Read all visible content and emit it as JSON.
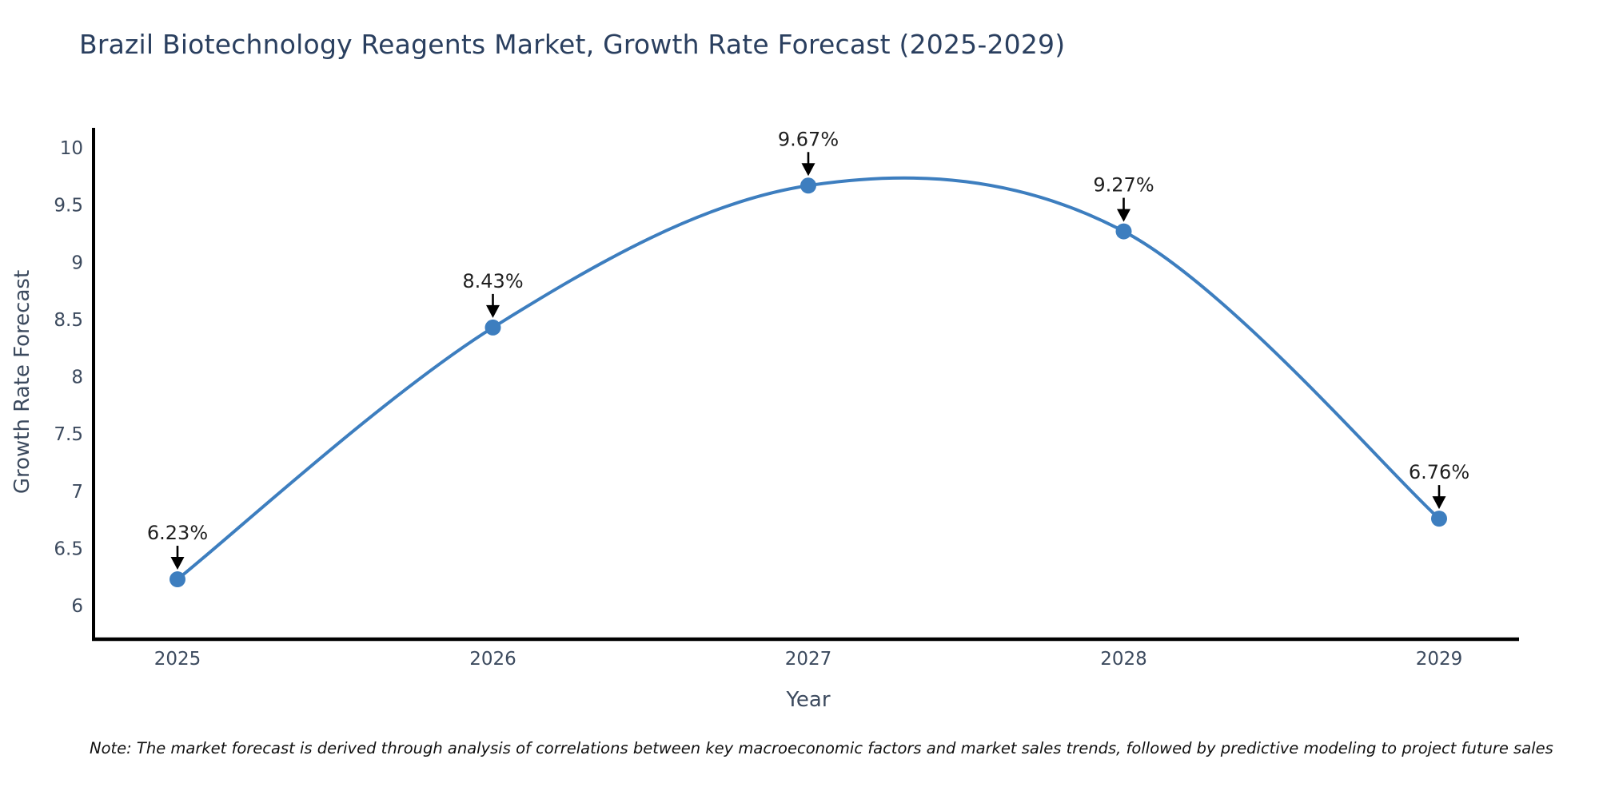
{
  "title": "Brazil Biotechnology Reagents Market, Growth Rate Forecast (2025-2029)",
  "note": "Note: The market forecast is derived through analysis of correlations between key macroeconomic factors and market sales trends, followed by predictive modeling to project future sales",
  "chart_data": {
    "type": "line",
    "title": "Brazil Biotechnology Reagents Market, Growth Rate Forecast (2025-2029)",
    "xlabel": "Year",
    "ylabel": "Growth Rate Forecast",
    "x": [
      2025,
      2026,
      2027,
      2028,
      2029
    ],
    "values": [
      6.23,
      8.43,
      9.67,
      9.27,
      6.76
    ],
    "point_labels": [
      "6.23%",
      "8.43%",
      "9.67%",
      "9.27%",
      "6.76%"
    ],
    "xticks": [
      "2025",
      "2026",
      "2027",
      "2028",
      "2029"
    ],
    "yticks": [
      "6",
      "6.5",
      "7",
      "7.5",
      "8",
      "8.5",
      "9",
      "9.5",
      "10"
    ],
    "ylim": [
      5.7,
      10.2
    ],
    "grid": false,
    "legend": "none",
    "smooth": true,
    "annotation_style": "value label above point with black down arrow"
  },
  "colors": {
    "title": "#2a3f5f",
    "tick_labels": "#3c4a5e",
    "axis_labels": "#3c4a5e",
    "axis_spine": "#000000",
    "line": "#3d7ebf",
    "marker": "#3d7ebf",
    "annotation_text": "#1f1f1f",
    "annotation_arrow": "#000000",
    "note_text": "#111111",
    "background": "#ffffff"
  }
}
